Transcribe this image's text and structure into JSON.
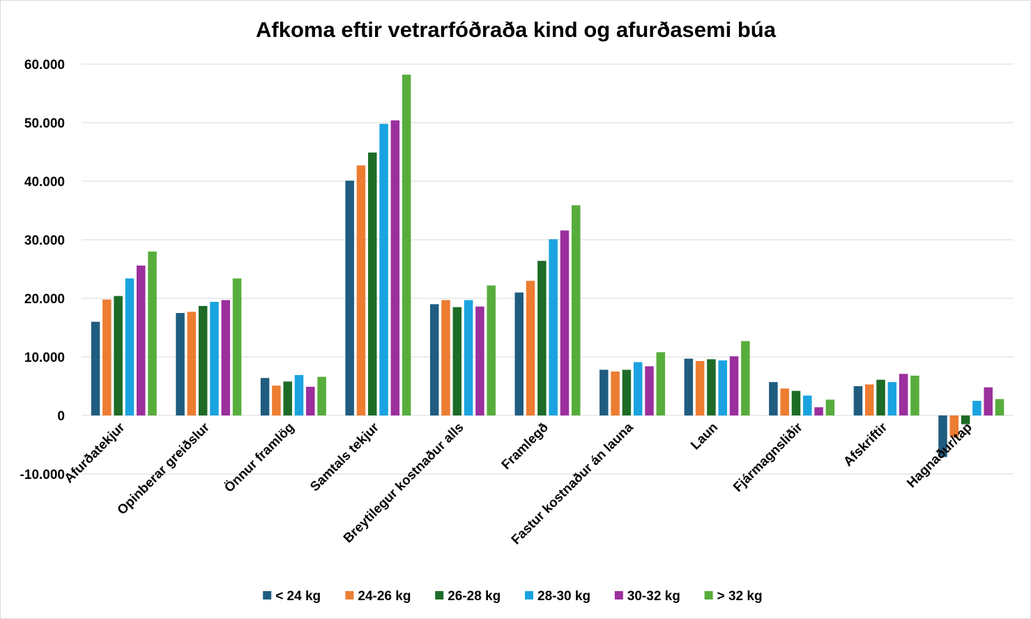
{
  "chart_data": {
    "type": "bar",
    "title": "Afkoma eftir vetrarfóðraða kind og afurðasemi búa",
    "xlabel": "",
    "ylabel": "",
    "ylim": [
      -10000,
      60000
    ],
    "yticks": [
      -10000,
      0,
      10000,
      20000,
      30000,
      40000,
      50000,
      60000
    ],
    "ytick_labels": [
      "-10.000",
      "0",
      "10.000",
      "20.000",
      "30.000",
      "40.000",
      "50.000",
      "60.000"
    ],
    "grid": true,
    "legend_position": "bottom",
    "categories": [
      "Afurðatekjur",
      "Opinberar greiðslur",
      "Önnur framlög",
      "Samtals tekjur",
      "Breytilegur kostnaður alls",
      "Framlegð",
      "Fastur kostnaður án launa",
      "Laun",
      "Fjármagnsliðir",
      "Afskriftir",
      "Hagnaður/tap"
    ],
    "series": [
      {
        "name": "< 24 kg",
        "color": "#1f5c7f",
        "values": [
          16000,
          17500,
          6400,
          40100,
          19000,
          21000,
          7800,
          9700,
          5700,
          5000,
          -7100
        ]
      },
      {
        "name": "24-26 kg",
        "color": "#ed7d31",
        "values": [
          19800,
          17700,
          5100,
          42700,
          19700,
          23000,
          7500,
          9300,
          4600,
          5300,
          -3700
        ]
      },
      {
        "name": "26-28 kg",
        "color": "#1d6b26",
        "values": [
          20400,
          18700,
          5800,
          44900,
          18500,
          26400,
          7800,
          9600,
          4200,
          6100,
          -1500
        ]
      },
      {
        "name": "28-30 kg",
        "color": "#1aa3e0",
        "values": [
          23400,
          19400,
          6900,
          49800,
          19700,
          30100,
          9100,
          9400,
          3400,
          5700,
          2500
        ]
      },
      {
        "name": "30-32 kg",
        "color": "#9b2f9d",
        "values": [
          25600,
          19700,
          4900,
          50400,
          18600,
          31600,
          8400,
          10100,
          1400,
          7100,
          4800
        ]
      },
      {
        "name": "> 32 kg",
        "color": "#57ad3c",
        "values": [
          28000,
          23400,
          6600,
          58200,
          22200,
          35900,
          10800,
          12700,
          2700,
          6800,
          2800
        ]
      }
    ]
  }
}
